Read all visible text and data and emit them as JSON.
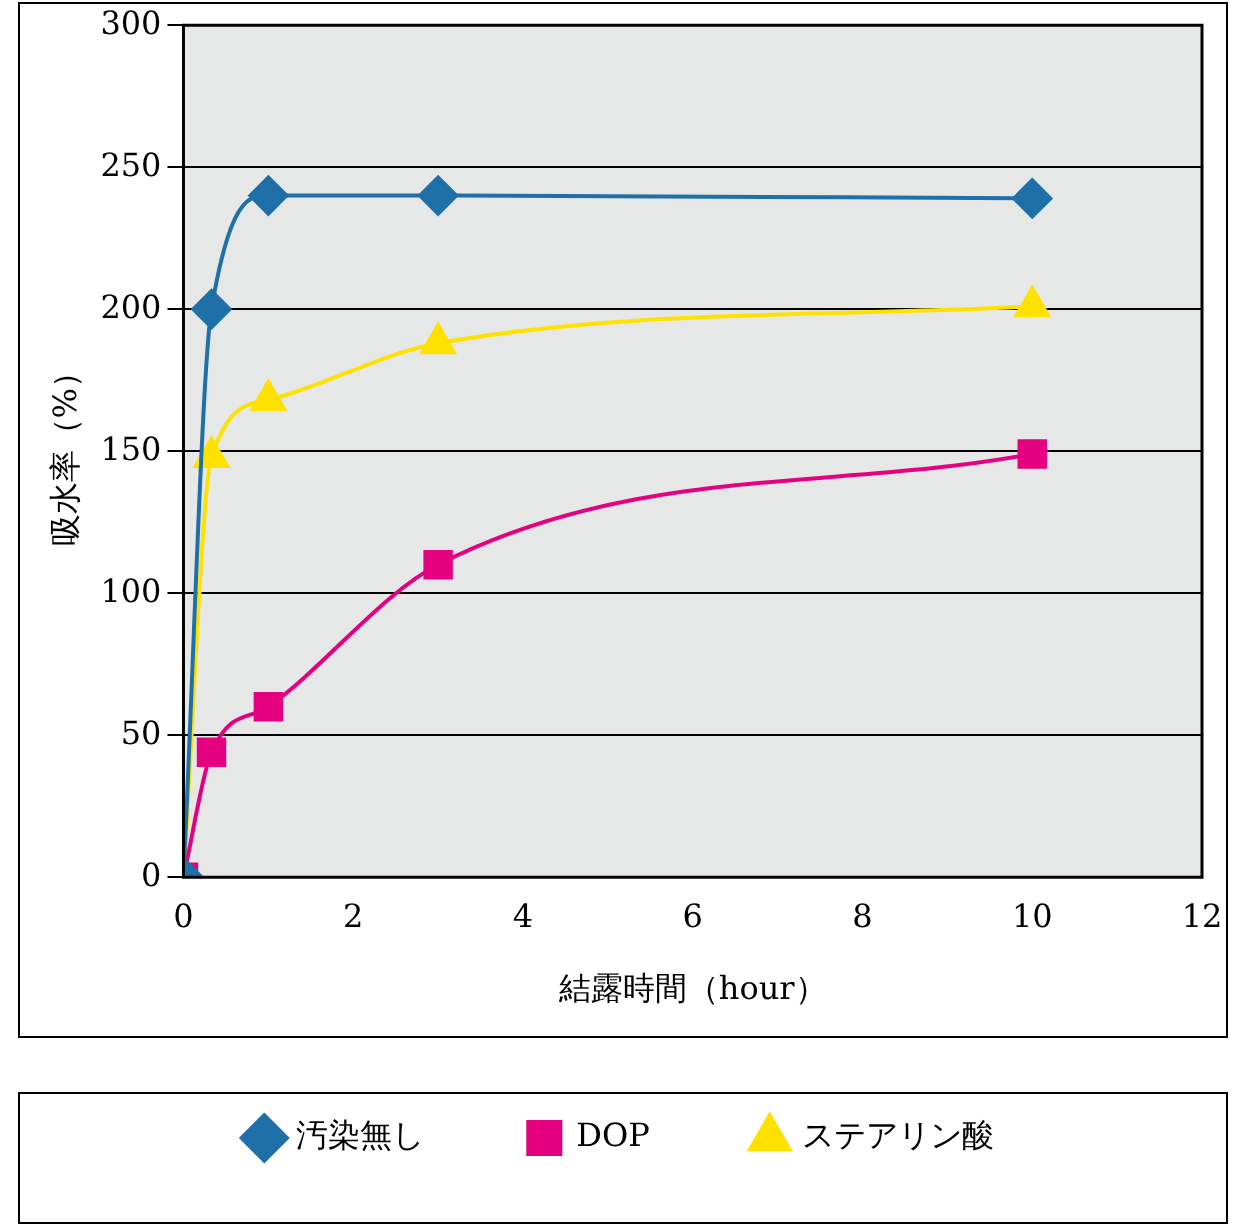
{
  "chart_data": {
    "type": "line",
    "xlabel": "結露時間（hour）",
    "ylabel": "吸水率（%）",
    "x": [
      0,
      0.33,
      1,
      3,
      10
    ],
    "series": [
      {
        "name": "汚染無し",
        "color": "#1f6fa8",
        "marker": "diamond",
        "values": [
          0,
          200,
          240,
          240,
          239
        ]
      },
      {
        "name": "DOP",
        "color": "#e4007f",
        "marker": "square",
        "values": [
          0,
          44,
          60,
          110,
          149
        ]
      },
      {
        "name": "ステアリン酸",
        "color": "#ffe100",
        "marker": "triangle",
        "values": [
          0,
          148,
          168,
          188,
          201
        ]
      }
    ],
    "xlim": [
      0,
      12
    ],
    "xticks": [
      0,
      2,
      4,
      6,
      8,
      10,
      12
    ],
    "ylim": [
      0,
      300
    ],
    "yticks": [
      0,
      50,
      100,
      150,
      200,
      250,
      300
    ],
    "grid": "y",
    "legend": "bottom"
  }
}
